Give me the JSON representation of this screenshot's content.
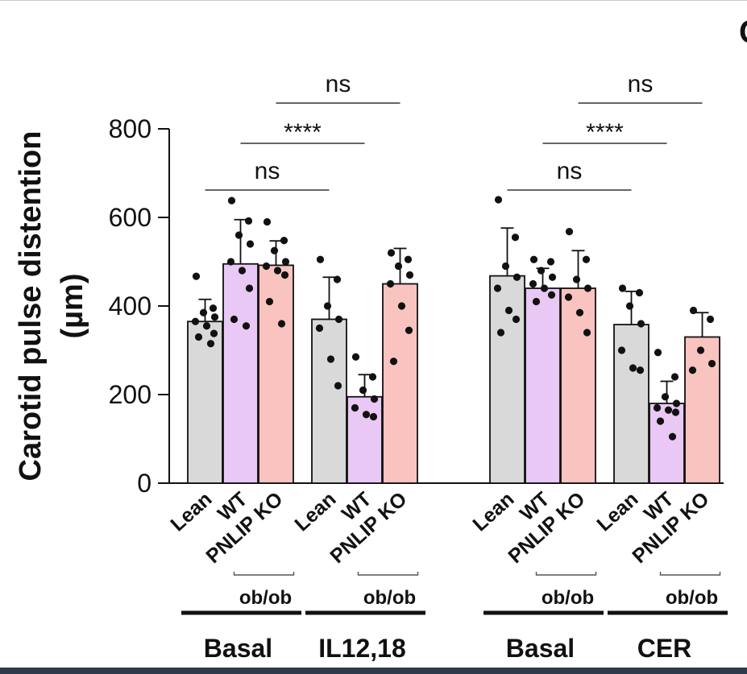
{
  "chart_data": {
    "type": "bar",
    "ylabel": "Carotid pulse distention\n(µm)",
    "ylim": [
      0,
      800
    ],
    "yticks": [
      0,
      200,
      400,
      600,
      800
    ],
    "panel_label": "C",
    "colors": {
      "Lean": "#d9d9d9",
      "WT": "#e9c8f5",
      "PNLIP KO": "#f9c4c0"
    },
    "groups": [
      {
        "name": "Basal",
        "bars": [
          {
            "label": "Lean",
            "mean": 365,
            "sd": 50,
            "points": [
              467,
              395,
              385,
              375,
              365,
              355,
              338,
              330,
              315
            ]
          },
          {
            "label": "WT",
            "mean": 495,
            "sd": 100,
            "points": [
              638,
              592,
              560,
              540,
              500,
              480,
              440,
              370,
              355
            ]
          },
          {
            "label": "PNLIP KO",
            "mean": 492,
            "sd": 55,
            "points": [
              590,
              548,
              525,
              500,
              490,
              480,
              470,
              410,
              360
            ]
          }
        ]
      },
      {
        "name": "IL12,18",
        "bars": [
          {
            "label": "Lean",
            "mean": 370,
            "sd": 95,
            "points": [
              505,
              460,
              400,
              370,
              350,
              280,
              220
            ]
          },
          {
            "label": "WT",
            "mean": 195,
            "sd": 50,
            "points": [
              285,
              240,
              210,
              190,
              170,
              155,
              150
            ]
          },
          {
            "label": "PNLIP KO",
            "mean": 450,
            "sd": 80,
            "points": [
              520,
              505,
              490,
              470,
              450,
              400,
              345,
              275
            ]
          }
        ]
      },
      {
        "name": "Basal",
        "bars": [
          {
            "label": "Lean",
            "mean": 468,
            "sd": 108,
            "points": [
              640,
              555,
              490,
              465,
              440,
              390,
              370,
              340
            ]
          },
          {
            "label": "WT",
            "mean": 440,
            "sd": 45,
            "points": [
              505,
              500,
              480,
              465,
              450,
              440,
              425,
              410
            ]
          },
          {
            "label": "PNLIP KO",
            "mean": 440,
            "sd": 85,
            "points": [
              568,
              505,
              460,
              440,
              420,
              385,
              340
            ]
          }
        ]
      },
      {
        "name": "CER",
        "bars": [
          {
            "label": "Lean",
            "mean": 358,
            "sd": 75,
            "points": [
              440,
              430,
              400,
              360,
              300,
              260,
              255
            ]
          },
          {
            "label": "WT",
            "mean": 180,
            "sd": 50,
            "points": [
              295,
              240,
              195,
              180,
              170,
              165,
              160,
              140,
              105
            ]
          },
          {
            "label": "PNLIP KO",
            "mean": 330,
            "sd": 55,
            "points": [
              390,
              370,
              300,
              270,
              255
            ]
          }
        ]
      }
    ],
    "ob_label": "ob/ob",
    "comparisons": [
      {
        "group": 0,
        "from_bar": 0,
        "to_group": 1,
        "to_bar": 0,
        "label": "ns",
        "level": 0
      },
      {
        "group": 0,
        "from_bar": 1,
        "to_group": 1,
        "to_bar": 1,
        "label": "****",
        "level": 1
      },
      {
        "group": 0,
        "from_bar": 2,
        "to_group": 1,
        "to_bar": 2,
        "label": "ns",
        "level": 2
      },
      {
        "group": 2,
        "from_bar": 0,
        "to_group": 3,
        "to_bar": 0,
        "label": "ns",
        "level": 0
      },
      {
        "group": 2,
        "from_bar": 1,
        "to_group": 3,
        "to_bar": 1,
        "label": "****",
        "level": 1
      },
      {
        "group": 2,
        "from_bar": 2,
        "to_group": 3,
        "to_bar": 2,
        "label": "ns",
        "level": 2
      }
    ]
  }
}
